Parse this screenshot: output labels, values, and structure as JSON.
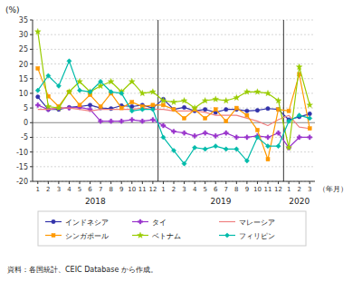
{
  "chart_data": {
    "type": "line",
    "y_label": "(%)",
    "x_label": "（年月）",
    "source": "資料：各国統計、CEIC Database から作成。",
    "categories": [
      "1",
      "2",
      "3",
      "4",
      "5",
      "6",
      "7",
      "8",
      "9",
      "10",
      "11",
      "12",
      "1",
      "2",
      "3",
      "4",
      "5",
      "6",
      "7",
      "8",
      "9",
      "10",
      "11",
      "12",
      "1",
      "2",
      "3"
    ],
    "annotations": [
      "2018",
      "2019",
      "2020"
    ],
    "ylim": [
      -20,
      35
    ],
    "yticks": [
      -20,
      -15,
      -10,
      -5,
      0,
      5,
      10,
      15,
      20,
      25,
      30,
      35
    ],
    "grid": true,
    "legend": "bottom",
    "series": [
      {
        "name": "インドネシア",
        "color": "#3333aa",
        "marker": "circle",
        "values": [
          8.8,
          4.5,
          4.5,
          5.2,
          5.5,
          6.0,
          5.0,
          4.8,
          5.8,
          5.5,
          6.0,
          5.0,
          8.0,
          4.5,
          5.2,
          4.0,
          4.5,
          3.5,
          4.5,
          4.5,
          4.0,
          4.2,
          4.8,
          4.5,
          1.0,
          2.0,
          3.0
        ]
      },
      {
        "name": "タイ",
        "color": "#9933cc",
        "marker": "plus",
        "values": [
          6.0,
          4.5,
          5.0,
          5.0,
          5.2,
          4.5,
          0.5,
          0.5,
          0.5,
          1.0,
          0.5,
          1.0,
          -1.0,
          -3.0,
          -3.5,
          -4.5,
          -3.5,
          -4.5,
          -3.5,
          -5.0,
          -5.0,
          -4.5,
          -5.0,
          -3.5,
          -8.5,
          -5.0,
          -5.0
        ]
      },
      {
        "name": "マレーシア",
        "color": "#f08080",
        "values": [
          4.5,
          4.5,
          5.0,
          5.0,
          4.5,
          4.0,
          4.5,
          4.5,
          4.5,
          4.5,
          5.0,
          4.5,
          4.5,
          4.0,
          4.0,
          4.0,
          3.5,
          2.5,
          2.5,
          2.5,
          1.5,
          0.5,
          -1.0,
          1.0,
          2.5,
          -1.5,
          -2.0
        ]
      },
      {
        "name": "シンガポール",
        "color": "#ff9900",
        "marker": "square",
        "values": [
          18.5,
          9.0,
          5.5,
          10.5,
          6.0,
          9.5,
          5.5,
          10.0,
          5.0,
          7.0,
          5.5,
          6.0,
          6.0,
          4.5,
          1.5,
          4.5,
          1.5,
          4.5,
          0.5,
          5.0,
          2.5,
          -2.5,
          -12.5,
          4.5,
          4.0,
          16.5,
          -2.0
        ]
      },
      {
        "name": "ベトナム",
        "color": "#99cc00",
        "marker": "star",
        "values": [
          31.0,
          5.5,
          5.0,
          10.5,
          14.0,
          10.5,
          12.5,
          14.0,
          10.5,
          14.0,
          10.0,
          10.5,
          7.5,
          7.0,
          7.5,
          5.0,
          7.5,
          8.0,
          7.5,
          8.5,
          10.5,
          10.5,
          10.0,
          7.5,
          -8.5,
          19.0,
          6.0
        ]
      },
      {
        "name": "フィリピン",
        "color": "#00bbaa",
        "marker": "diamond",
        "values": [
          11.0,
          16.0,
          12.5,
          21.0,
          11.0,
          10.5,
          14.0,
          10.5,
          10.0,
          4.0,
          4.5,
          4.5,
          -5.0,
          -9.5,
          -14.0,
          -8.5,
          -9.0,
          -8.0,
          -9.0,
          -9.0,
          -13.0,
          -5.0,
          -8.0,
          -8.0,
          0.5,
          2.5,
          1.5
        ]
      }
    ]
  }
}
